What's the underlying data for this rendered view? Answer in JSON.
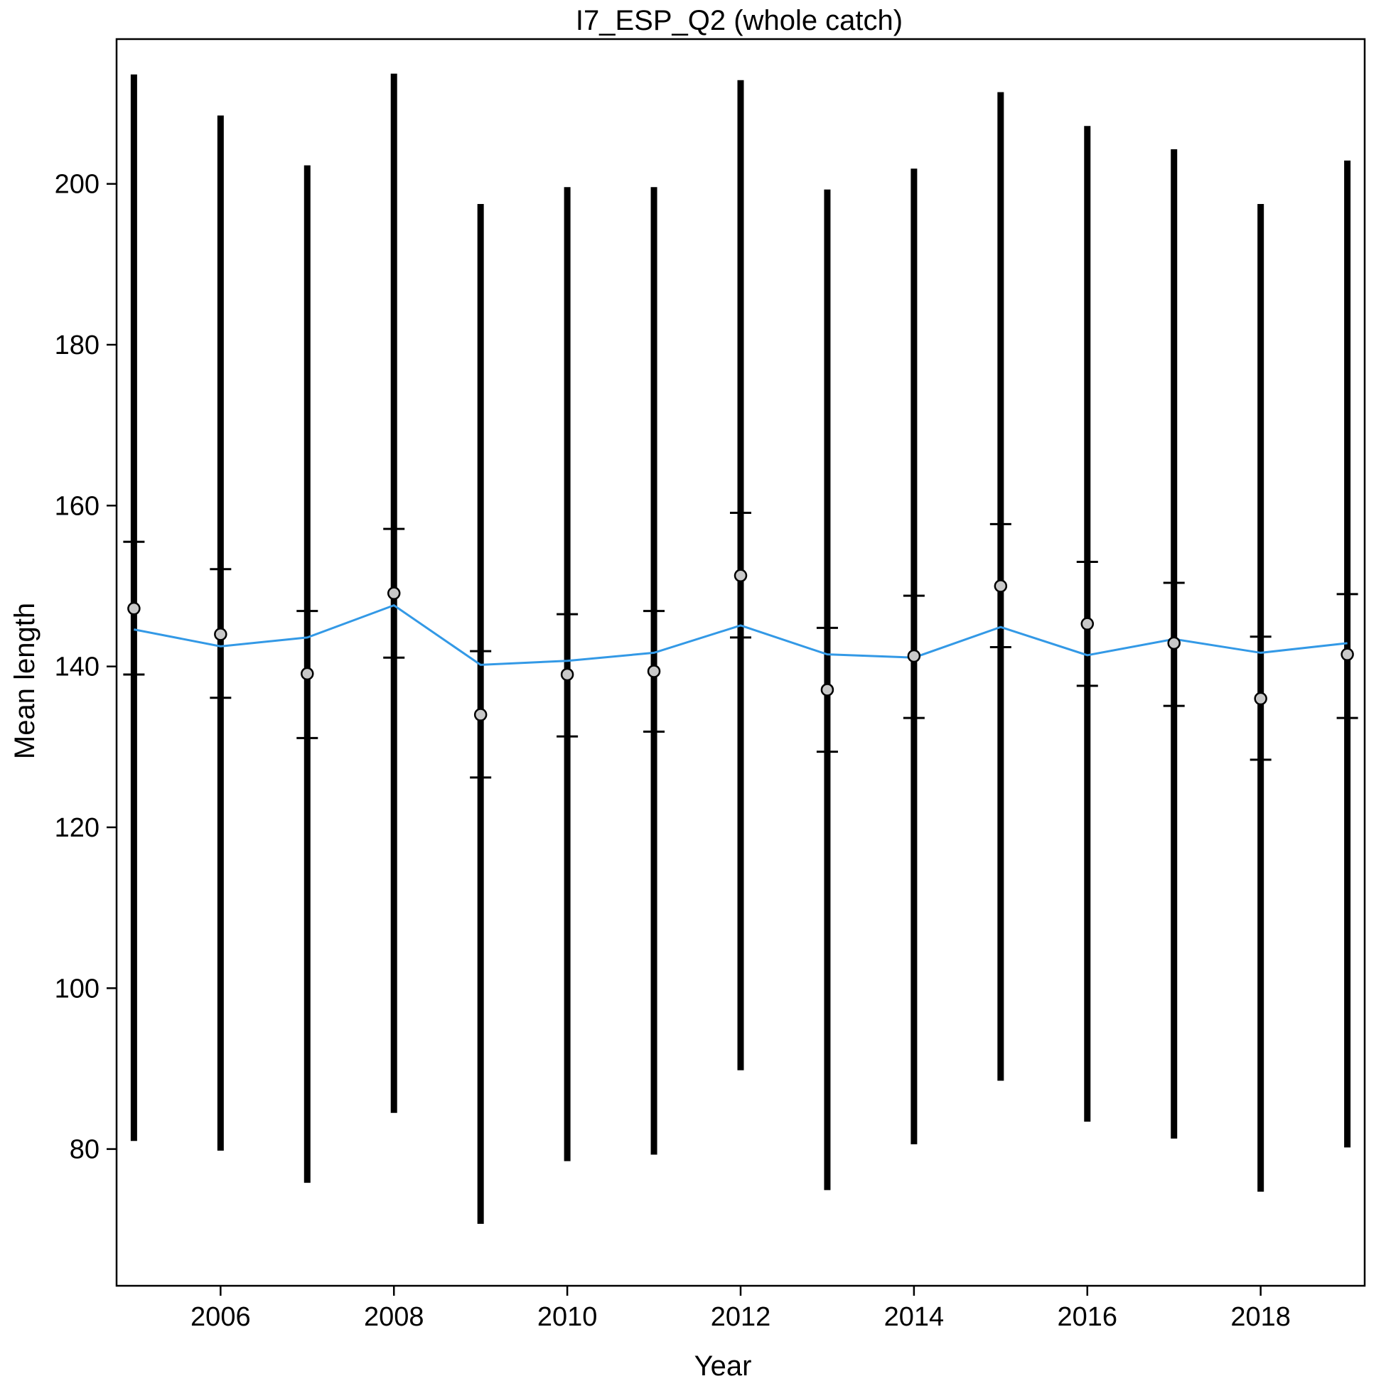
{
  "chart_data": {
    "type": "scatter",
    "title": "I7_ESP_Q2 (whole catch)",
    "xlabel": "Year",
    "ylabel": "Mean length",
    "xlim": [
      2004.8,
      2019.2
    ],
    "ylim": [
      63,
      218
    ],
    "xticks": [
      2006,
      2008,
      2010,
      2012,
      2014,
      2016,
      2018
    ],
    "yticks": [
      80,
      100,
      120,
      140,
      160,
      180,
      200
    ],
    "grid": false,
    "colors": {
      "observed": "#c8c8c8",
      "expected": "#3399e6",
      "intervals": "#000000"
    },
    "series": [
      {
        "name": "observed",
        "x": [
          2005,
          2006,
          2007,
          2008,
          2009,
          2010,
          2011,
          2012,
          2013,
          2014,
          2015,
          2016,
          2017,
          2018,
          2019
        ],
        "y": [
          147.2,
          144.0,
          139.1,
          149.1,
          134.0,
          139.0,
          139.4,
          151.3,
          137.1,
          141.3,
          150.0,
          145.3,
          142.9,
          136.0,
          141.5
        ]
      },
      {
        "name": "expected",
        "x": [
          2005,
          2006,
          2007,
          2008,
          2009,
          2010,
          2011,
          2012,
          2013,
          2014,
          2015,
          2016,
          2017,
          2018,
          2019
        ],
        "y": [
          144.6,
          142.5,
          143.6,
          147.6,
          140.2,
          140.7,
          141.7,
          145.1,
          141.5,
          141.1,
          144.9,
          141.4,
          143.4,
          141.7,
          142.9
        ]
      },
      {
        "name": "inner_interval",
        "x": [
          2005,
          2006,
          2007,
          2008,
          2009,
          2010,
          2011,
          2012,
          2013,
          2014,
          2015,
          2016,
          2017,
          2018,
          2019
        ],
        "low": [
          139.0,
          136.1,
          131.1,
          141.1,
          126.2,
          131.3,
          131.9,
          143.6,
          129.4,
          133.6,
          142.4,
          137.6,
          135.1,
          128.4,
          133.6
        ],
        "high": [
          155.5,
          152.1,
          146.9,
          157.1,
          141.9,
          146.5,
          146.9,
          159.1,
          144.8,
          148.8,
          157.7,
          153.0,
          150.4,
          143.7,
          149.0
        ]
      },
      {
        "name": "outer_interval",
        "x": [
          2005,
          2006,
          2007,
          2008,
          2009,
          2010,
          2011,
          2012,
          2013,
          2014,
          2015,
          2016,
          2017,
          2018,
          2019
        ],
        "low": [
          81.0,
          79.8,
          75.8,
          84.5,
          70.7,
          78.5,
          79.3,
          89.8,
          74.9,
          80.6,
          88.5,
          83.4,
          81.3,
          74.7,
          80.2
        ],
        "high": [
          213.6,
          208.5,
          202.3,
          213.7,
          197.5,
          199.6,
          199.6,
          212.9,
          199.3,
          201.9,
          211.4,
          207.2,
          204.3,
          197.5,
          202.9
        ]
      }
    ]
  }
}
